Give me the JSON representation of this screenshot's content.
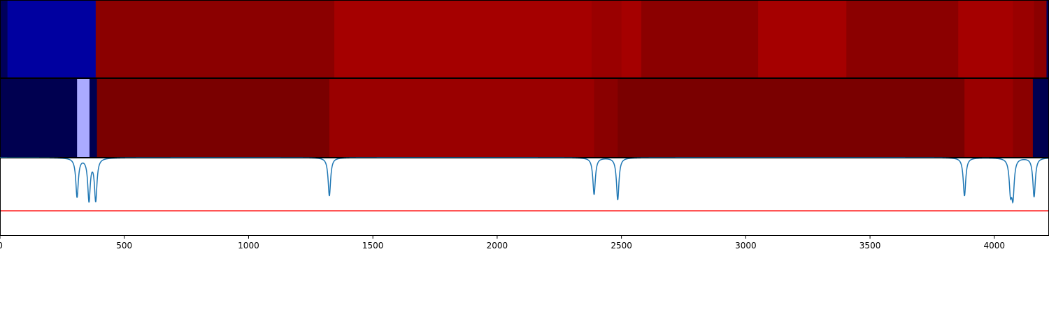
{
  "chart_data": {
    "type": "heatmap",
    "xlim": [
      0,
      4220
    ],
    "x_ticks": [
      0,
      500,
      1000,
      1500,
      2000,
      2500,
      3000,
      3500,
      4000
    ],
    "x_tick_labels": [
      "0",
      "500",
      "1000",
      "1500",
      "2000",
      "2500",
      "3000",
      "3500",
      "4000"
    ],
    "panels": [
      {
        "type": "heatmap-strip",
        "segments": [
          {
            "start": 0,
            "end": 30,
            "color": "#00005a"
          },
          {
            "start": 30,
            "end": 385,
            "color": "#0000a0"
          },
          {
            "start": 385,
            "end": 1345,
            "color": "#8b0000"
          },
          {
            "start": 1345,
            "end": 2380,
            "color": "#a50000"
          },
          {
            "start": 2380,
            "end": 2500,
            "color": "#9a0000"
          },
          {
            "start": 2500,
            "end": 2580,
            "color": "#a50000"
          },
          {
            "start": 2580,
            "end": 3050,
            "color": "#8b0000"
          },
          {
            "start": 3050,
            "end": 3405,
            "color": "#a50000"
          },
          {
            "start": 3405,
            "end": 3855,
            "color": "#8b0000"
          },
          {
            "start": 3855,
            "end": 4075,
            "color": "#a50000"
          },
          {
            "start": 4075,
            "end": 4160,
            "color": "#9a0000"
          },
          {
            "start": 4160,
            "end": 4210,
            "color": "#8b0000"
          },
          {
            "start": 4210,
            "end": 4220,
            "color": "#00005a"
          }
        ]
      },
      {
        "type": "heatmap-strip",
        "segments": [
          {
            "start": 0,
            "end": 310,
            "color": "#000050"
          },
          {
            "start": 310,
            "end": 360,
            "color": "#aaaaff"
          },
          {
            "start": 360,
            "end": 390,
            "color": "#000050"
          },
          {
            "start": 390,
            "end": 1325,
            "color": "#7a0000"
          },
          {
            "start": 1325,
            "end": 2390,
            "color": "#9a0000"
          },
          {
            "start": 2390,
            "end": 2485,
            "color": "#8a0000"
          },
          {
            "start": 2485,
            "end": 3880,
            "color": "#7a0000"
          },
          {
            "start": 3880,
            "end": 4075,
            "color": "#9a0000"
          },
          {
            "start": 4075,
            "end": 4155,
            "color": "#8a0000"
          },
          {
            "start": 4155,
            "end": 4220,
            "color": "#000050"
          }
        ]
      },
      {
        "type": "line",
        "ylim": [
          0,
          1
        ],
        "line_color": "#1f77b4",
        "threshold": 0.32,
        "threshold_color": "#ff0000",
        "dips": [
          {
            "x": 310,
            "depth": 0.5
          },
          {
            "x": 358,
            "depth": 0.54
          },
          {
            "x": 385,
            "depth": 0.54
          },
          {
            "x": 1325,
            "depth": 0.49
          },
          {
            "x": 2390,
            "depth": 0.47
          },
          {
            "x": 2485,
            "depth": 0.54
          },
          {
            "x": 3880,
            "depth": 0.49
          },
          {
            "x": 4065,
            "depth": 0.4
          },
          {
            "x": 4075,
            "depth": 0.46
          },
          {
            "x": 4160,
            "depth": 0.5
          }
        ]
      }
    ]
  }
}
